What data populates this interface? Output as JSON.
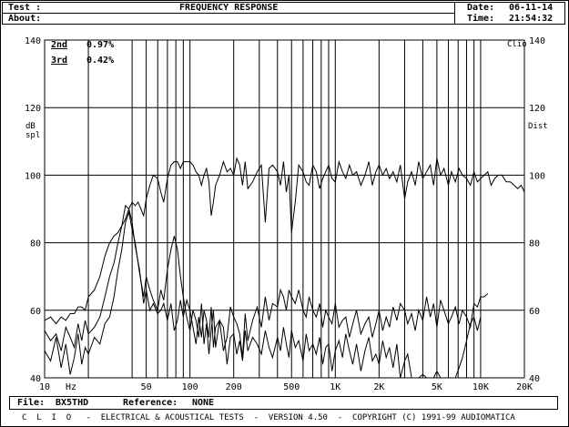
{
  "header": {
    "test_label": "Test :",
    "about_label": "About:",
    "title": "FREQUENCY RESPONSE",
    "date_label": "Date:",
    "date_value": "06-11-14",
    "time_label": "Time:",
    "time_value": "21:54:32"
  },
  "legend": {
    "items": [
      {
        "label": "2nd",
        "value": "0.97%"
      },
      {
        "label": "3rd",
        "value": "0.42%"
      }
    ]
  },
  "brand_tag": "Clio",
  "footer": {
    "file_label": "File:",
    "file_value": "BX5THD",
    "reference_label": "Reference:",
    "reference_value": "NONE",
    "credits": "C  L  I  O   -  ELECTRICAL & ACOUSTICAL TESTS  -  VERSION 4.50  -  COPYRIGHT (C) 1991-99 AUDIOMATICA"
  },
  "chart_data": {
    "type": "line",
    "title": "FREQUENCY RESPONSE",
    "xscale": "log",
    "xlim": [
      10,
      20000
    ],
    "ylim": [
      40,
      140
    ],
    "ylabel_left": [
      "dB",
      "spl"
    ],
    "ylabel_right": "Dist",
    "xunit_label": "Hz",
    "x_ticks": [
      {
        "value": 10,
        "label": "10"
      },
      {
        "value": 50,
        "label": "50"
      },
      {
        "value": 100,
        "label": "100"
      },
      {
        "value": 200,
        "label": "200"
      },
      {
        "value": 500,
        "label": "500"
      },
      {
        "value": 1000,
        "label": "1K"
      },
      {
        "value": 2000,
        "label": "2K"
      },
      {
        "value": 5000,
        "label": "5K"
      },
      {
        "value": 10000,
        "label": "10K"
      },
      {
        "value": 20000,
        "label": "20K"
      }
    ],
    "y_ticks": [
      40,
      60,
      80,
      100,
      120,
      140
    ],
    "grid": true,
    "vertical_markers_hz": [
      20,
      40,
      50,
      60,
      70,
      80,
      90,
      100,
      200,
      300,
      400,
      500,
      600,
      700,
      800,
      900,
      1000,
      2000,
      3000,
      4000,
      5000,
      6000,
      7000,
      8000,
      9000,
      10000
    ],
    "series": [
      {
        "x": [
          10,
          11,
          12,
          13,
          14,
          15,
          16,
          17,
          18,
          19,
          20,
          22,
          24,
          26,
          28,
          30,
          32,
          34,
          36,
          38,
          40,
          42,
          44,
          46,
          48,
          50,
          53,
          56,
          60,
          63,
          66,
          70,
          74,
          78,
          82,
          86,
          90,
          95,
          100,
          105,
          110,
          115,
          120,
          125,
          130,
          135,
          140,
          145,
          150,
          160,
          170,
          180,
          190,
          200,
          210,
          220,
          230,
          240,
          250,
          270,
          290,
          310,
          330,
          350,
          370,
          400,
          420,
          440,
          460,
          480,
          500,
          530,
          560,
          600,
          630,
          660,
          700,
          740,
          780,
          820,
          860,
          900,
          950,
          1000,
          1060,
          1120,
          1180,
          1250,
          1320,
          1400,
          1500,
          1600,
          1700,
          1800,
          1900,
          2000,
          2120,
          2240,
          2360,
          2500,
          2650,
          2800,
          3000,
          3150,
          3350,
          3550,
          3750,
          4000,
          4250,
          4500,
          4750,
          5000,
          5300,
          5600,
          6000,
          6300,
          6700,
          7100,
          7500,
          8000,
          8500,
          9000,
          9500,
          10000,
          10600,
          11200,
          11800,
          12500,
          13200,
          14000,
          15000,
          16000,
          17000,
          18000,
          19000,
          20000
        ],
        "y": [
          57,
          58,
          56,
          58,
          57,
          59,
          59,
          61,
          61,
          60,
          64,
          66,
          70,
          76,
          80,
          82,
          83,
          85,
          87,
          90,
          92,
          91,
          92,
          90,
          88,
          93,
          97,
          100,
          99,
          95,
          92,
          99,
          103,
          104,
          104,
          102,
          104,
          104,
          104,
          103,
          101,
          100,
          97,
          100,
          102,
          98,
          88,
          92,
          97,
          100,
          104,
          101,
          102,
          100,
          105,
          103,
          97,
          104,
          96,
          98,
          101,
          103,
          86,
          102,
          103,
          101,
          97,
          104,
          95,
          100,
          83,
          92,
          103,
          101,
          98,
          97,
          103,
          101,
          96,
          99,
          101,
          103,
          99,
          98,
          104,
          101,
          99,
          103,
          100,
          101,
          97,
          100,
          104,
          97,
          101,
          103,
          100,
          102,
          99,
          101,
          98,
          103,
          93,
          98,
          101,
          97,
          104,
          99,
          101,
          103,
          97,
          105,
          100,
          102,
          97,
          101,
          98,
          102,
          100,
          99,
          97,
          101,
          98,
          99,
          100,
          101,
          97,
          99,
          100,
          100,
          98,
          98,
          97,
          96,
          97,
          95
        ]
      },
      {
        "x": [
          10,
          11,
          12,
          13,
          14,
          15,
          16,
          17,
          18,
          19,
          20,
          22,
          24,
          26,
          28,
          30,
          32,
          34,
          36,
          38,
          40,
          42,
          45,
          48,
          50,
          53,
          56,
          60,
          63,
          66,
          70,
          74,
          78,
          82,
          86,
          90,
          95,
          100,
          105,
          110,
          115,
          120,
          125,
          130,
          135,
          140,
          145,
          150,
          160,
          170,
          180,
          190,
          200,
          210,
          220,
          230,
          240,
          250,
          270,
          290,
          310,
          330,
          350,
          370,
          400,
          420,
          440,
          460,
          480,
          500,
          530,
          560,
          600,
          630,
          660,
          700,
          740,
          780,
          820,
          860,
          900,
          950,
          1000,
          1060,
          1120,
          1180,
          1250,
          1320,
          1400,
          1500,
          1600,
          1700,
          1800,
          1900,
          2000,
          2120,
          2240,
          2360,
          2500,
          2650,
          2800,
          3000,
          3150,
          3350,
          3550,
          3750,
          4000,
          4250,
          4500,
          4750,
          5000,
          5300,
          5600,
          6000,
          6300,
          6700,
          7100,
          7500,
          8000,
          8500,
          9000,
          9500,
          10000,
          10600,
          11200
        ],
        "y": [
          54,
          51,
          53,
          48,
          55,
          52,
          49,
          56,
          51,
          57,
          53,
          55,
          58,
          64,
          70,
          74,
          80,
          85,
          91,
          90,
          86,
          79,
          72,
          62,
          66,
          60,
          62,
          59,
          60,
          62,
          57,
          62,
          54,
          57,
          63,
          58,
          63,
          60,
          55,
          50,
          58,
          52,
          60,
          57,
          52,
          61,
          49,
          55,
          57,
          48,
          52,
          61,
          58,
          56,
          53,
          46,
          59,
          51,
          57,
          61,
          55,
          64,
          57,
          62,
          61,
          66,
          64,
          60,
          66,
          64,
          62,
          66,
          60,
          58,
          64,
          60,
          58,
          62,
          55,
          60,
          58,
          56,
          62,
          55,
          57,
          58,
          52,
          56,
          60,
          53,
          56,
          58,
          52,
          56,
          60,
          54,
          58,
          55,
          61,
          57,
          62,
          60,
          56,
          59,
          54,
          60,
          57,
          64,
          58,
          62,
          55,
          63,
          60,
          56,
          58,
          61,
          56,
          60,
          58,
          55,
          62,
          61,
          64,
          64,
          65
        ]
      },
      {
        "x": [
          10,
          11,
          12,
          13,
          14,
          15,
          16,
          17,
          18,
          19,
          20,
          22,
          24,
          26,
          28,
          30,
          32,
          34,
          36,
          38,
          40,
          42,
          45,
          48,
          50,
          53,
          56,
          60,
          63,
          66,
          70,
          74,
          78,
          82,
          86,
          90,
          95,
          100,
          105,
          110,
          115,
          120,
          125,
          130,
          135,
          140,
          145,
          150,
          160,
          170,
          180,
          190,
          200,
          210,
          220,
          230,
          240,
          250,
          270,
          290,
          310,
          330,
          350,
          370,
          400,
          420,
          440,
          460,
          480,
          500,
          530,
          560,
          600,
          630,
          660,
          700,
          740,
          780,
          820,
          860,
          900,
          950,
          1000,
          1060,
          1120,
          1180,
          1250,
          1320,
          1400,
          1500,
          1600,
          1700,
          1800,
          1900,
          2000,
          2120,
          2240,
          2360,
          2500,
          2650,
          2800,
          3000,
          3150,
          3350,
          3550,
          3750,
          4000,
          4250,
          4500,
          4750,
          5000,
          5300,
          5600,
          6000,
          6300,
          6700,
          7100,
          7500,
          8000,
          8500,
          9000,
          9500,
          10000
        ],
        "y": [
          48,
          45,
          52,
          43,
          50,
          41,
          46,
          53,
          44,
          49,
          47,
          52,
          50,
          56,
          58,
          64,
          72,
          78,
          86,
          89,
          84,
          80,
          71,
          64,
          70,
          66,
          63,
          60,
          66,
          63,
          72,
          78,
          82,
          78,
          70,
          64,
          58,
          54,
          60,
          57,
          52,
          62,
          50,
          56,
          47,
          54,
          60,
          49,
          57,
          55,
          44,
          52,
          53,
          47,
          51,
          45,
          54,
          48,
          52,
          50,
          47,
          54,
          49,
          46,
          52,
          48,
          55,
          50,
          46,
          54,
          49,
          51,
          45,
          53,
          48,
          50,
          47,
          52,
          44,
          49,
          50,
          42,
          48,
          51,
          46,
          53,
          48,
          44,
          50,
          42,
          48,
          52,
          45,
          47,
          44,
          51,
          46,
          49,
          43,
          50,
          40,
          45,
          47,
          40,
          38,
          40,
          41,
          38,
          40,
          38,
          42,
          39,
          37,
          40,
          38,
          40,
          43,
          46,
          51,
          56,
          58,
          54,
          58
        ]
      }
    ]
  }
}
